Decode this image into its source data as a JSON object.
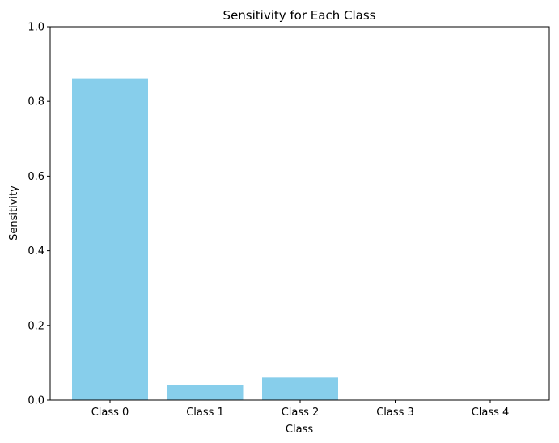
{
  "chart_data": {
    "type": "bar",
    "title": "Sensitivity for Each Class",
    "xlabel": "Class",
    "ylabel": "Sensitivity",
    "categories": [
      "Class 0",
      "Class 1",
      "Class 2",
      "Class 3",
      "Class 4"
    ],
    "values": [
      0.862,
      0.04,
      0.06,
      0.0,
      0.0
    ],
    "ylim": [
      0,
      1
    ],
    "yticks": [
      "0.0",
      "0.2",
      "0.4",
      "0.6",
      "0.8",
      "1.0"
    ],
    "grid": false,
    "bar_color": "#87ceeb"
  }
}
